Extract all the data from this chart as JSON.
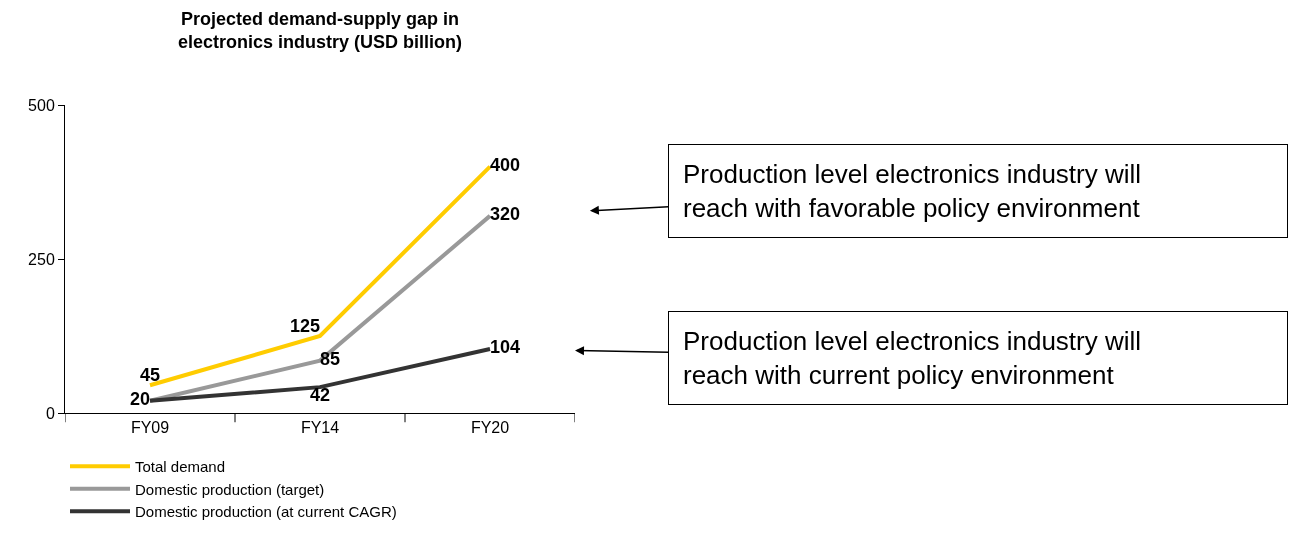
{
  "chart_data": {
    "type": "line",
    "title": "Projected demand-supply gap in\nelectronics industry (USD billion)",
    "categories": [
      "FY09",
      "FY14",
      "FY20"
    ],
    "ylim": [
      0,
      500
    ],
    "yticks": [
      0,
      250,
      500
    ],
    "grid": false,
    "legend": "bottom left",
    "marker": "none",
    "line_style": "solid",
    "series": [
      {
        "name": "Total demand",
        "color": "#ffcc00",
        "values": [
          45,
          125,
          400
        ],
        "value_labels": [
          "45",
          "125",
          "400"
        ]
      },
      {
        "name": "Domestic production (target)",
        "color": "#999999",
        "values": [
          20,
          85,
          320
        ],
        "value_labels": [
          null,
          "85",
          "320"
        ]
      },
      {
        "name": "Domestic production (at current CAGR)",
        "color": "#333333",
        "values": [
          20,
          42,
          104
        ],
        "value_labels": [
          "20",
          "42",
          "104"
        ]
      }
    ],
    "annotations": [
      {
        "text": "Production level electronics industry will\nreach with favorable policy environment",
        "x": "FY20",
        "y": 320
      },
      {
        "text": "Production level electronics industry will\nreach with current policy environment",
        "x": "FY20",
        "y": 104
      }
    ]
  }
}
